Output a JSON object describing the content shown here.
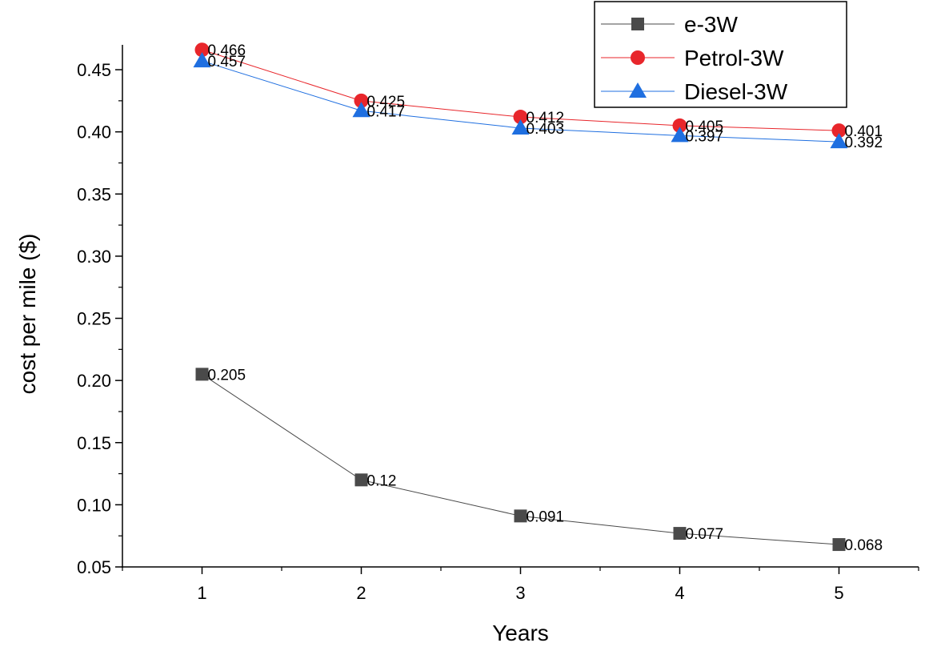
{
  "chart_data": {
    "type": "line",
    "xlabel": "Years",
    "ylabel": "cost per mile ($)",
    "x": [
      1,
      2,
      3,
      4,
      5
    ],
    "xlim": [
      0.5,
      5.5
    ],
    "ylim": [
      0.05,
      0.47
    ],
    "yticks": [
      0.05,
      0.1,
      0.15,
      0.2,
      0.25,
      0.3,
      0.35,
      0.4,
      0.45
    ],
    "ytick_labels": [
      "0.05",
      "0.10",
      "0.15",
      "0.20",
      "0.25",
      "0.30",
      "0.35",
      "0.40",
      "0.45"
    ],
    "xticks": [
      1,
      2,
      3,
      4,
      5
    ],
    "xtick_labels": [
      "1",
      "2",
      "3",
      "4",
      "5"
    ],
    "grid": false,
    "legend_position": "top-right",
    "series": [
      {
        "name": "e-3W",
        "values": [
          0.205,
          0.12,
          0.091,
          0.077,
          0.068
        ],
        "labels": [
          "0.205",
          "0.12",
          "0.091",
          "0.077",
          "0.068"
        ],
        "color": "#4a4a4a",
        "marker": "square"
      },
      {
        "name": "Petrol-3W",
        "values": [
          0.466,
          0.425,
          0.412,
          0.405,
          0.401
        ],
        "labels": [
          "0.466",
          "0.425",
          "0.412",
          "0.405",
          "0.401"
        ],
        "color": "#e8262b",
        "marker": "circle"
      },
      {
        "name": "Diesel-3W",
        "values": [
          0.457,
          0.417,
          0.403,
          0.397,
          0.392
        ],
        "labels": [
          "0.457",
          "0.417",
          "0.403",
          "0.397",
          "0.392"
        ],
        "color": "#1f6fe0",
        "marker": "triangle"
      }
    ]
  }
}
